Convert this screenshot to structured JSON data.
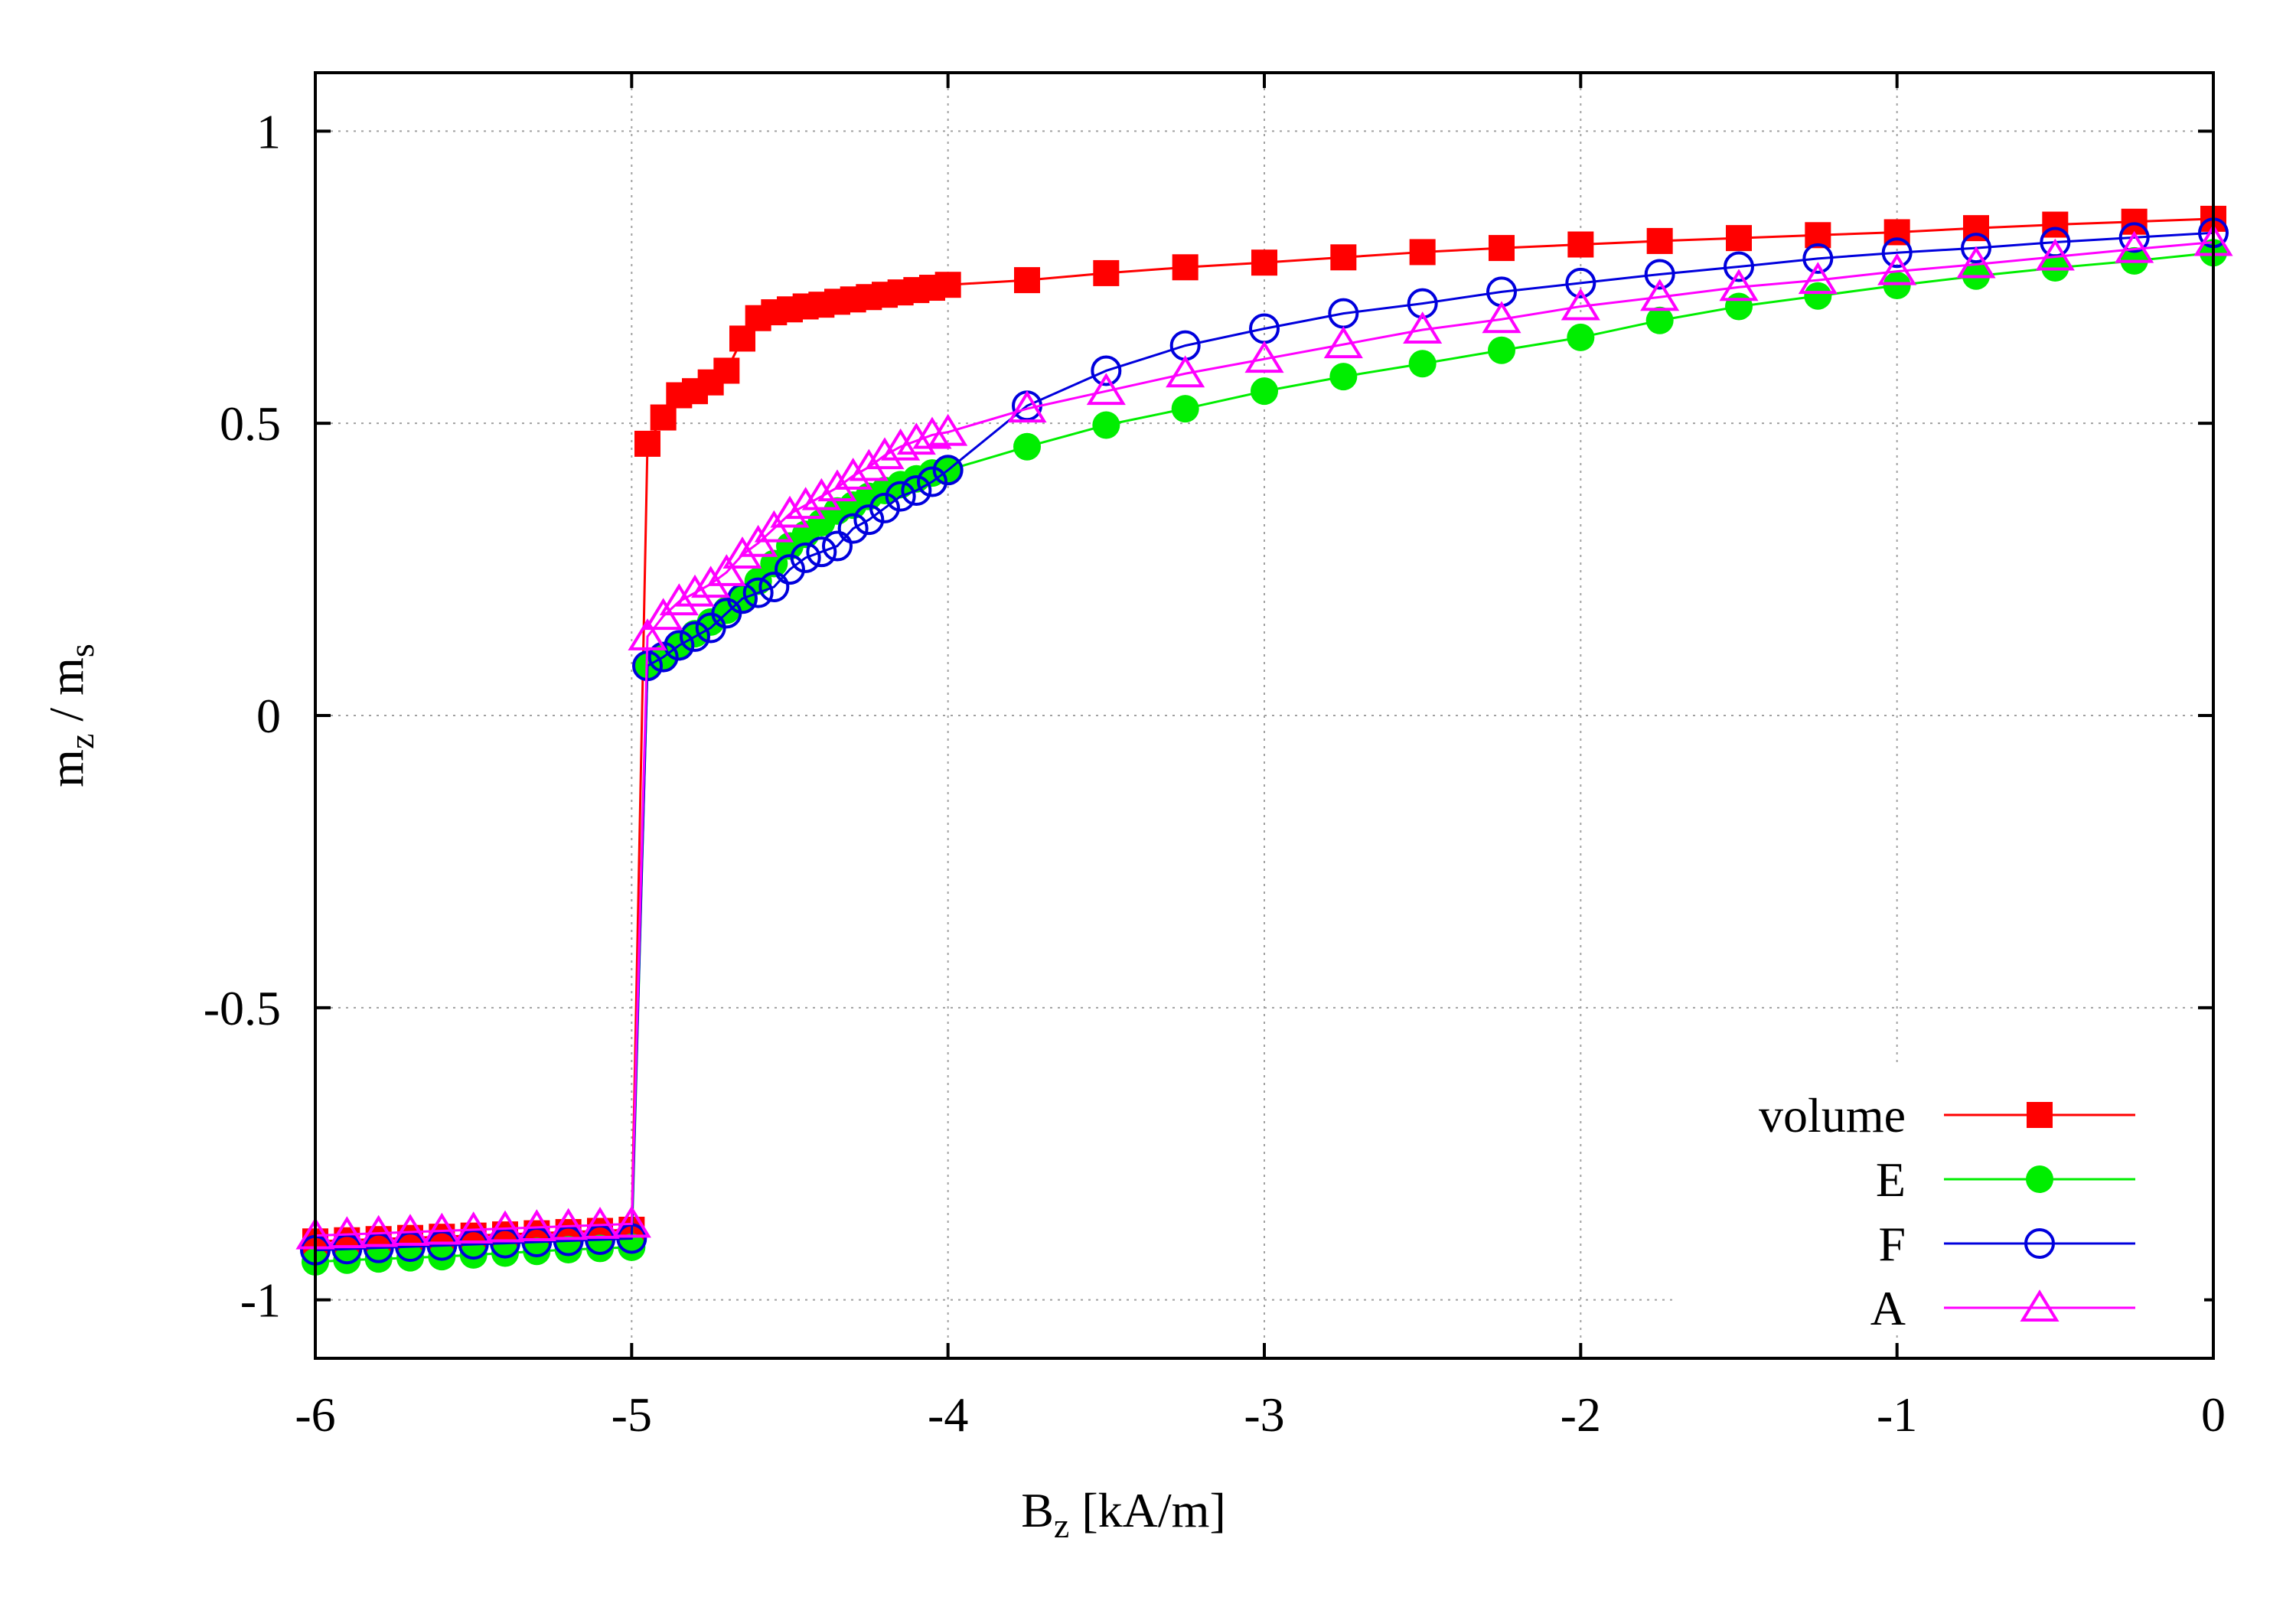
{
  "chart_data": {
    "type": "line",
    "title": "",
    "xlabel": {
      "main": "B",
      "sub": "z",
      "rest": " [kA/m]"
    },
    "ylabel": {
      "num_main": "m",
      "num_sub": "z",
      "sep": " / ",
      "den_main": "m",
      "den_sub": "s"
    },
    "xlim": [
      -6,
      0
    ],
    "ylim": [
      -1.1,
      1.1
    ],
    "xticks": [
      -6,
      -5,
      -4,
      -3,
      -2,
      -1,
      0
    ],
    "xtick_labels": [
      "-6",
      "-5",
      "-4",
      "-3",
      "-2",
      "-1",
      "0"
    ],
    "yticks": [
      -1,
      -0.5,
      0,
      0.5,
      1
    ],
    "ytick_labels": [
      "-1",
      "-0.5",
      "0",
      "0.5",
      "1"
    ],
    "grid": true,
    "legend_position": "bottom-right",
    "series": [
      {
        "name": "volume",
        "color": "#ff0000",
        "marker": "filled-square",
        "x": [
          -6,
          -5.9,
          -5.8,
          -5.7,
          -5.6,
          -5.5,
          -5.4,
          -5.3,
          -5.2,
          -5.1,
          -5.0,
          -4.95,
          -4.9,
          -4.85,
          -4.8,
          -4.75,
          -4.7,
          -4.65,
          -4.6,
          -4.55,
          -4.5,
          -4.45,
          -4.4,
          -4.35,
          -4.3,
          -4.25,
          -4.2,
          -4.15,
          -4.1,
          -4.05,
          -4.0,
          -3.75,
          -3.5,
          -3.25,
          -3.0,
          -2.75,
          -2.5,
          -2.25,
          -2.0,
          -1.75,
          -1.5,
          -1.25,
          -1.0,
          -0.75,
          -0.5,
          -0.25,
          0
        ],
        "y": [
          -0.9,
          -0.898,
          -0.896,
          -0.894,
          -0.892,
          -0.89,
          -0.888,
          -0.886,
          -0.884,
          -0.882,
          -0.88,
          0.465,
          0.51,
          0.548,
          0.555,
          0.57,
          0.59,
          0.645,
          0.68,
          0.69,
          0.695,
          0.7,
          0.703,
          0.708,
          0.712,
          0.716,
          0.72,
          0.724,
          0.728,
          0.732,
          0.737,
          0.745,
          0.757,
          0.767,
          0.775,
          0.784,
          0.793,
          0.8,
          0.806,
          0.812,
          0.817,
          0.822,
          0.827,
          0.834,
          0.84,
          0.845,
          0.85
        ]
      },
      {
        "name": "E",
        "color": "#00ee00",
        "marker": "filled-circle",
        "x": [
          -6,
          -5.9,
          -5.8,
          -5.7,
          -5.6,
          -5.5,
          -5.4,
          -5.3,
          -5.2,
          -5.1,
          -5.0,
          -4.95,
          -4.9,
          -4.85,
          -4.8,
          -4.75,
          -4.7,
          -4.65,
          -4.6,
          -4.55,
          -4.5,
          -4.45,
          -4.4,
          -4.35,
          -4.3,
          -4.25,
          -4.2,
          -4.15,
          -4.1,
          -4.05,
          -4.0,
          -3.75,
          -3.5,
          -3.25,
          -3.0,
          -2.75,
          -2.5,
          -2.25,
          -2.0,
          -1.75,
          -1.5,
          -1.25,
          -1.0,
          -0.75,
          -0.5,
          -0.25,
          0
        ],
        "y": [
          -0.935,
          -0.932,
          -0.93,
          -0.928,
          -0.926,
          -0.923,
          -0.92,
          -0.917,
          -0.914,
          -0.912,
          -0.91,
          0.085,
          0.1,
          0.12,
          0.14,
          0.16,
          0.18,
          0.2,
          0.23,
          0.26,
          0.29,
          0.31,
          0.33,
          0.35,
          0.36,
          0.375,
          0.385,
          0.395,
          0.405,
          0.415,
          0.42,
          0.46,
          0.497,
          0.525,
          0.555,
          0.58,
          0.602,
          0.625,
          0.647,
          0.676,
          0.7,
          0.718,
          0.736,
          0.752,
          0.766,
          0.778,
          0.792
        ]
      },
      {
        "name": "F",
        "color": "#0000dd",
        "marker": "open-circle",
        "x": [
          -6,
          -5.9,
          -5.8,
          -5.7,
          -5.6,
          -5.5,
          -5.4,
          -5.3,
          -5.2,
          -5.1,
          -5.0,
          -4.95,
          -4.9,
          -4.85,
          -4.8,
          -4.75,
          -4.7,
          -4.65,
          -4.6,
          -4.55,
          -4.5,
          -4.45,
          -4.4,
          -4.35,
          -4.3,
          -4.25,
          -4.2,
          -4.15,
          -4.1,
          -4.05,
          -4.0,
          -3.75,
          -3.5,
          -3.25,
          -3.0,
          -2.75,
          -2.5,
          -2.25,
          -2.0,
          -1.75,
          -1.5,
          -1.25,
          -1.0,
          -0.75,
          -0.5,
          -0.25,
          0
        ],
        "y": [
          -0.915,
          -0.913,
          -0.911,
          -0.909,
          -0.907,
          -0.905,
          -0.903,
          -0.901,
          -0.899,
          -0.897,
          -0.895,
          0.085,
          0.1,
          0.12,
          0.135,
          0.15,
          0.175,
          0.2,
          0.21,
          0.22,
          0.25,
          0.27,
          0.28,
          0.29,
          0.32,
          0.335,
          0.355,
          0.375,
          0.385,
          0.4,
          0.42,
          0.53,
          0.59,
          0.633,
          0.662,
          0.688,
          0.705,
          0.725,
          0.74,
          0.755,
          0.768,
          0.782,
          0.792,
          0.8,
          0.81,
          0.818,
          0.826
        ]
      },
      {
        "name": "A",
        "color": "#ff00ff",
        "marker": "open-triangle",
        "x": [
          -6,
          -5.9,
          -5.8,
          -5.7,
          -5.6,
          -5.5,
          -5.4,
          -5.3,
          -5.2,
          -5.1,
          -5.0,
          -4.95,
          -4.9,
          -4.85,
          -4.8,
          -4.75,
          -4.7,
          -4.65,
          -4.6,
          -4.55,
          -4.5,
          -4.45,
          -4.4,
          -4.35,
          -4.3,
          -4.25,
          -4.2,
          -4.15,
          -4.1,
          -4.05,
          -4.0,
          -3.75,
          -3.5,
          -3.25,
          -3.0,
          -2.75,
          -2.5,
          -2.25,
          -2.0,
          -1.75,
          -1.5,
          -1.25,
          -1.0,
          -0.75,
          -0.5,
          -0.25,
          0
        ],
        "y": [
          -0.89,
          -0.888,
          -0.886,
          -0.884,
          -0.882,
          -0.88,
          -0.878,
          -0.876,
          -0.874,
          -0.872,
          -0.87,
          0.135,
          0.17,
          0.195,
          0.21,
          0.225,
          0.245,
          0.275,
          0.295,
          0.32,
          0.345,
          0.36,
          0.375,
          0.39,
          0.41,
          0.425,
          0.445,
          0.46,
          0.47,
          0.48,
          0.485,
          0.525,
          0.555,
          0.585,
          0.61,
          0.635,
          0.66,
          0.678,
          0.7,
          0.716,
          0.733,
          0.745,
          0.76,
          0.772,
          0.785,
          0.798,
          0.81
        ]
      }
    ]
  }
}
